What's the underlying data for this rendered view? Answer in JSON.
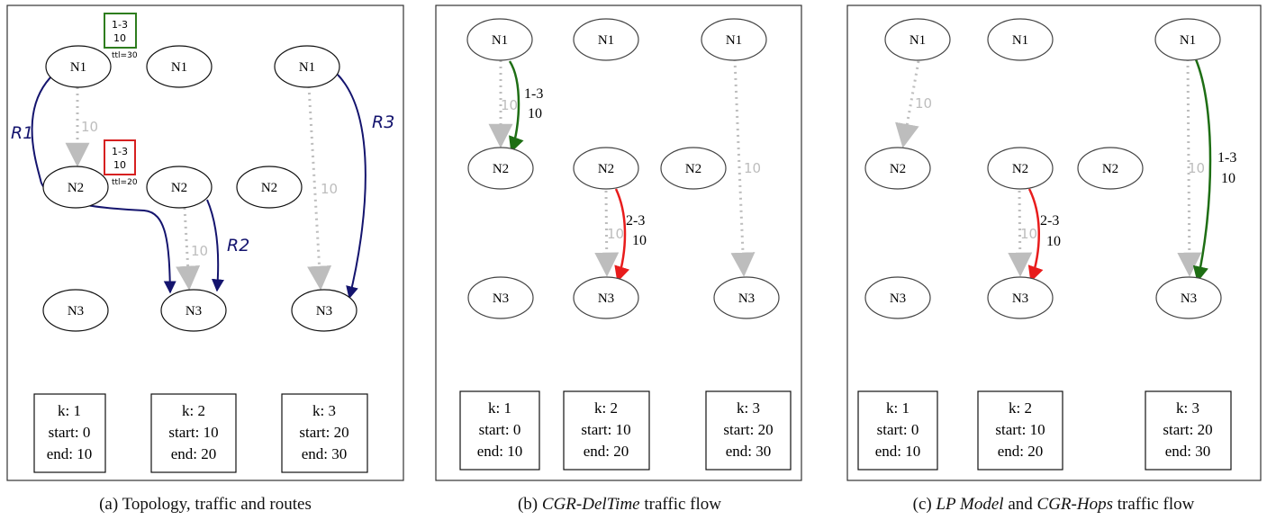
{
  "panels": [
    {
      "id": "a",
      "caption_prefix": "(a) ",
      "caption_emph": "",
      "caption_rest": "Topology, traffic and routes",
      "nodes": {
        "N1": "N1",
        "N2": "N2",
        "N3": "N3"
      },
      "traffic": [
        {
          "label1": "1-3",
          "label2": "10",
          "ttl": "ttl=30",
          "color": "#2e7d1e"
        },
        {
          "label1": "1-3",
          "label2": "10",
          "ttl": "ttl=20",
          "color": "#d62020"
        }
      ],
      "capacities": [
        "10",
        "10",
        "10"
      ],
      "routes": [
        "R1",
        "R2",
        "R3"
      ],
      "route_color": "#14146e",
      "intervals": [
        {
          "k": "k: 1",
          "start": "start: 0",
          "end": "end: 10"
        },
        {
          "k": "k: 2",
          "start": "start: 10",
          "end": "end: 20"
        },
        {
          "k": "k: 3",
          "start": "start: 20",
          "end": "end: 30"
        }
      ]
    },
    {
      "id": "b",
      "caption_prefix": "(b) ",
      "caption_emph": "CGR-DelTime",
      "caption_rest": " traffic flow",
      "nodes": {
        "N1": "N1",
        "N2": "N2",
        "N3": "N3"
      },
      "capacities": [
        "10",
        "10",
        "10"
      ],
      "flows": [
        {
          "label1": "1-3",
          "label2": "10",
          "color": "#1e6e14"
        },
        {
          "label1": "2-3",
          "label2": "10",
          "color": "#e81c1c"
        }
      ],
      "intervals": [
        {
          "k": "k: 1",
          "start": "start: 0",
          "end": "end: 10"
        },
        {
          "k": "k: 2",
          "start": "start: 10",
          "end": "end: 20"
        },
        {
          "k": "k: 3",
          "start": "start: 20",
          "end": "end: 30"
        }
      ]
    },
    {
      "id": "c",
      "caption_prefix": "(c) ",
      "caption_emph": "LP Model",
      "caption_mid": " and ",
      "caption_emph2": "CGR-Hops",
      "caption_rest": " traffic flow",
      "nodes": {
        "N1": "N1",
        "N2": "N2",
        "N3": "N3"
      },
      "capacities": [
        "10",
        "10",
        "10"
      ],
      "flows": [
        {
          "label1": "2-3",
          "label2": "10",
          "color": "#e81c1c"
        },
        {
          "label1": "1-3",
          "label2": "10",
          "color": "#1e6e14"
        }
      ],
      "intervals": [
        {
          "k": "k: 1",
          "start": "start: 0",
          "end": "end: 10"
        },
        {
          "k": "k: 2",
          "start": "start: 10",
          "end": "end: 20"
        },
        {
          "k": "k: 3",
          "start": "start: 20",
          "end": "end: 30"
        }
      ]
    }
  ],
  "capacity_color": "#bdbdbd"
}
